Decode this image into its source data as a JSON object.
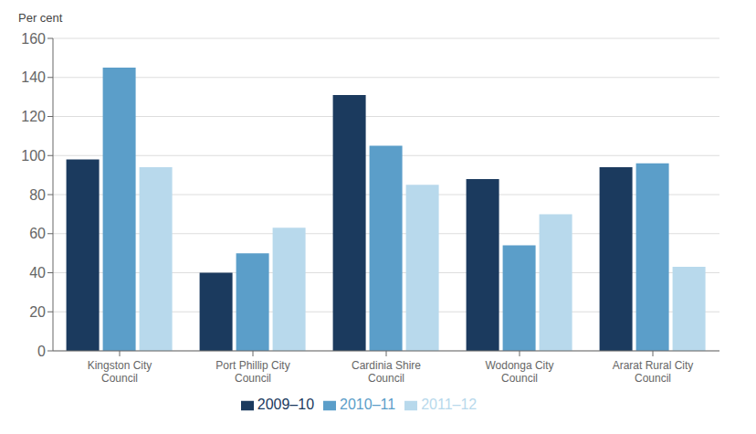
{
  "chart_data": {
    "type": "bar",
    "ylabel": "Per cent",
    "categories": [
      "Kingston City\nCouncil",
      "Port Phillip City\nCouncil",
      "Cardinia Shire\nCouncil",
      "Wodonga City\nCouncil",
      "Ararat Rural City\nCouncil"
    ],
    "series": [
      {
        "name": "2009–10",
        "color": "#1b3a5e",
        "values": [
          98,
          40,
          131,
          88,
          94
        ]
      },
      {
        "name": "2010–11",
        "color": "#5b9ec9",
        "values": [
          145,
          50,
          105,
          54,
          96
        ]
      },
      {
        "name": "2011–12",
        "color": "#b8d9ec",
        "values": [
          94,
          63,
          85,
          70,
          43
        ]
      }
    ],
    "ylim": [
      0,
      160
    ],
    "yticks": [
      0,
      20,
      40,
      60,
      80,
      100,
      120,
      140,
      160
    ],
    "grid": true,
    "legend": "bottom"
  }
}
